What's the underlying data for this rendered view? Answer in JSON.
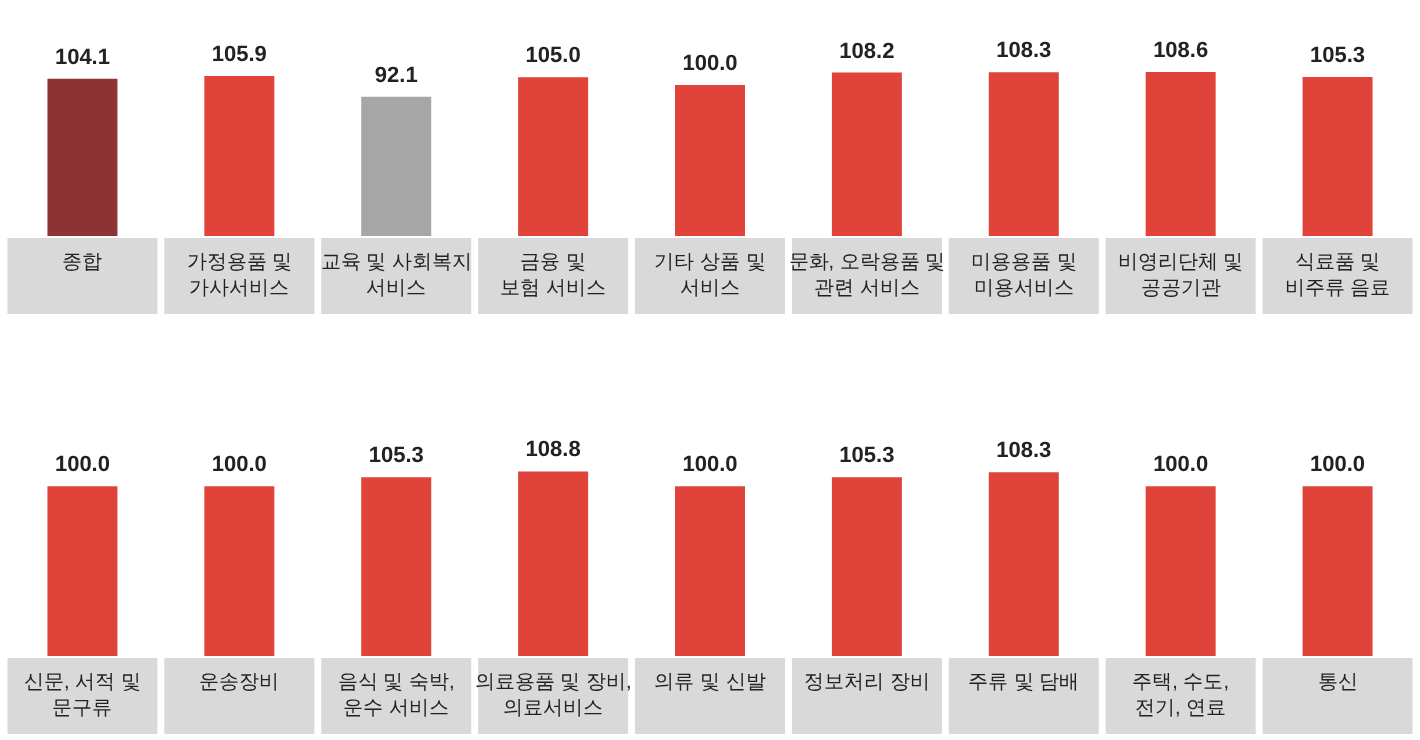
{
  "chart_data": [
    {
      "type": "bar",
      "categories": [
        "종합",
        "가정용품 및\n가사서비스",
        "교육 및 사회복지\n서비스",
        "금융 및\n보험 서비스",
        "기타 상품 및\n서비스",
        "문화, 오락용품 및\n관련 서비스",
        "미용용품 및\n미용서비스",
        "비영리단체 및\n공공기관",
        "식료품 및\n비주류 음료"
      ],
      "values": [
        104.1,
        105.9,
        92.1,
        105.0,
        100.0,
        108.2,
        108.3,
        108.6,
        105.3
      ],
      "value_labels": [
        "104.1",
        "105.9",
        "92.1",
        "105.0",
        "100.0",
        "108.2",
        "108.3",
        "108.6",
        "105.3"
      ],
      "colors": [
        "#8e3333",
        "#e0433a",
        "#a6a6a6",
        "#e0433a",
        "#e0433a",
        "#e0433a",
        "#e0433a",
        "#e0433a",
        "#e0433a"
      ],
      "tick_labels": "x"
    },
    {
      "type": "bar",
      "categories": [
        "신문, 서적 및\n문구류",
        "운송장비",
        "음식 및 숙박,\n운수 서비스",
        "의료용품 및 장비,\n의료서비스",
        "의류 및 신발",
        "정보처리 장비",
        "주류 및 담배",
        "주택, 수도,\n전기, 연료",
        "통신"
      ],
      "values": [
        100.0,
        100.0,
        105.3,
        108.8,
        100.0,
        105.3,
        108.3,
        100.0,
        100.0
      ],
      "value_labels": [
        "100.0",
        "100.0",
        "105.3",
        "108.8",
        "100.0",
        "105.3",
        "108.3",
        "100.0",
        "100.0"
      ],
      "colors": [
        "#e0433a",
        "#e0433a",
        "#e0433a",
        "#e0433a",
        "#e0433a",
        "#e0433a",
        "#e0433a",
        "#e0433a",
        "#e0433a"
      ],
      "tick_labels": "x"
    }
  ]
}
